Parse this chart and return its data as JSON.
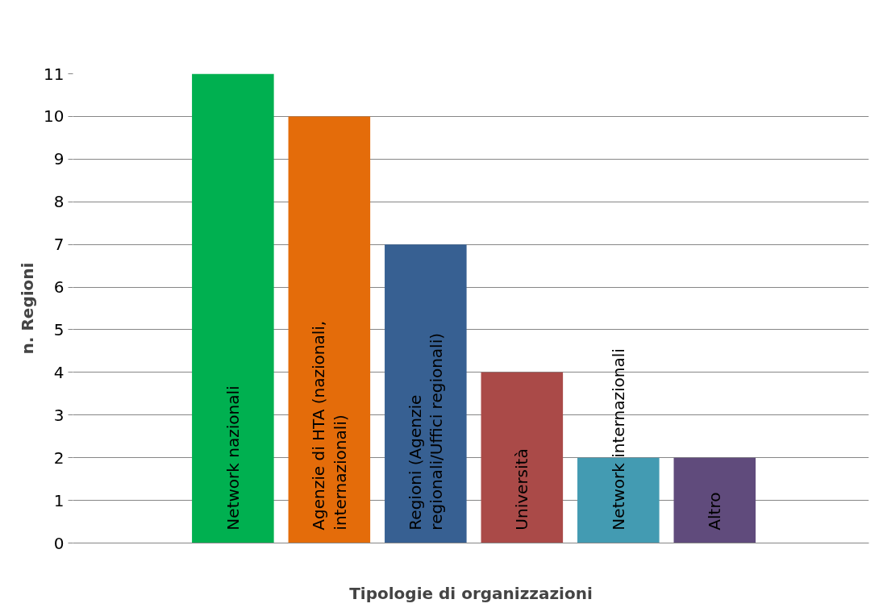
{
  "chart_data": {
    "type": "bar",
    "xlabel": "Tipologie di organizzazioni",
    "ylabel": "n. Regioni",
    "categories": [
      "Network nazionali",
      "Agenzie di HTA (nazionali, internazionali)",
      "Regioni (Agenzie regionali/Uffici regionali)",
      "Università",
      "Network internazionali",
      "Altro"
    ],
    "values": [
      11,
      10,
      7,
      4,
      2,
      2
    ],
    "colors": [
      "#00b050",
      "#e46c0a",
      "#376092",
      "#aa4a48",
      "#439bb2",
      "#604b7c"
    ],
    "ylim": [
      0,
      11
    ],
    "yticks": [
      0,
      1,
      2,
      3,
      4,
      5,
      6,
      7,
      8,
      9,
      10,
      11
    ],
    "grid": "y"
  }
}
